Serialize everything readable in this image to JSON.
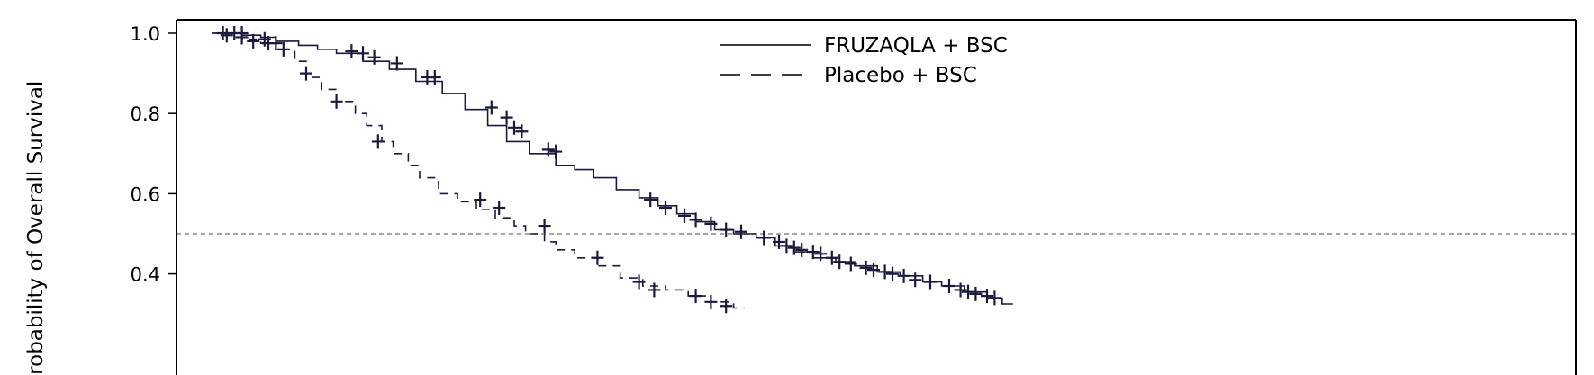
{
  "chart_data": {
    "type": "line",
    "subtype": "kaplan-meier",
    "ylabel": "Probability of Overall Survival",
    "xlabel": "",
    "xlim": [
      0,
      36
    ],
    "ylim": [
      0,
      1.0
    ],
    "yticks": [
      0.4,
      0.6,
      0.8,
      1.0
    ],
    "ytick_labels": [
      "0.4",
      "0.6",
      "0.8",
      "1.0"
    ],
    "reference_line": {
      "y": 0.5,
      "style": "dashed",
      "color": "#888888"
    },
    "grid": false,
    "legend_position": "top-center",
    "colors": {
      "series": "#1a1a3a",
      "axes": "#000000",
      "reference": "#888888"
    },
    "series": [
      {
        "name": "FRUZAQLA + BSC",
        "line_style": "solid",
        "x": [
          0,
          0.8,
          1.3,
          1.7,
          2.3,
          2.8,
          3.3,
          4.0,
          4.7,
          5.4,
          6.1,
          6.7,
          7.3,
          7.8,
          8.4,
          9.1,
          9.6,
          10.1,
          10.7,
          11.3,
          11.8,
          12.3,
          12.8,
          13.3,
          13.8,
          14.4,
          14.9,
          15.4,
          15.9,
          16.5,
          17.0,
          17.6,
          18.2,
          18.8,
          19.3,
          19.9,
          20.5,
          20.9
        ],
        "y": [
          1.0,
          0.995,
          0.99,
          0.98,
          0.97,
          0.96,
          0.95,
          0.93,
          0.91,
          0.88,
          0.85,
          0.81,
          0.77,
          0.73,
          0.7,
          0.67,
          0.66,
          0.64,
          0.61,
          0.59,
          0.57,
          0.55,
          0.53,
          0.51,
          0.5,
          0.49,
          0.47,
          0.455,
          0.44,
          0.43,
          0.42,
          0.405,
          0.395,
          0.38,
          0.37,
          0.355,
          0.34,
          0.325
        ],
        "censored_x": [
          0.3,
          0.6,
          0.8,
          1.4,
          1.7,
          3.7,
          4.0,
          4.3,
          4.9,
          5.7,
          5.9,
          7.4,
          7.8,
          8.0,
          8.2,
          8.9,
          9.1,
          11.6,
          12.0,
          12.5,
          12.8,
          13.2,
          13.6,
          14.0,
          14.6,
          15.0,
          15.2,
          15.4,
          15.6,
          15.9,
          16.1,
          16.4,
          16.6,
          16.9,
          17.3,
          17.5,
          17.8,
          18.0,
          18.3,
          18.6,
          19.0,
          19.5,
          19.8,
          20.0,
          20.2,
          20.5,
          20.7
        ],
        "censored_y": [
          1.0,
          1.0,
          1.0,
          0.985,
          0.975,
          0.955,
          0.95,
          0.94,
          0.925,
          0.89,
          0.89,
          0.815,
          0.79,
          0.765,
          0.755,
          0.71,
          0.705,
          0.585,
          0.565,
          0.545,
          0.535,
          0.525,
          0.51,
          0.505,
          0.49,
          0.48,
          0.47,
          0.465,
          0.46,
          0.455,
          0.45,
          0.44,
          0.43,
          0.425,
          0.415,
          0.41,
          0.405,
          0.4,
          0.395,
          0.385,
          0.38,
          0.37,
          0.36,
          0.355,
          0.35,
          0.345,
          0.34
        ]
      },
      {
        "name": "Placebo + BSC",
        "line_style": "dashed",
        "x": [
          0,
          0.8,
          1.3,
          1.7,
          2.2,
          2.5,
          2.9,
          3.3,
          3.8,
          4.1,
          4.5,
          4.8,
          5.2,
          5.5,
          6.0,
          6.5,
          7.0,
          7.5,
          8.0,
          8.3,
          8.8,
          9.1,
          9.6,
          10.2,
          10.8,
          11.4,
          12.0,
          12.6,
          13.2,
          13.8
        ],
        "y": [
          1.0,
          0.985,
          0.975,
          0.96,
          0.93,
          0.89,
          0.86,
          0.83,
          0.8,
          0.77,
          0.73,
          0.7,
          0.67,
          0.64,
          0.6,
          0.58,
          0.56,
          0.54,
          0.52,
          0.5,
          0.48,
          0.46,
          0.44,
          0.42,
          0.39,
          0.37,
          0.36,
          0.345,
          0.33,
          0.315
        ],
        "censored_x": [
          0.4,
          0.8,
          1.1,
          1.5,
          1.9,
          2.5,
          3.3,
          4.4,
          7.1,
          7.6,
          8.8,
          10.2,
          11.3,
          11.7,
          12.8,
          13.2,
          13.6
        ],
        "censored_y": [
          0.995,
          0.99,
          0.98,
          0.975,
          0.96,
          0.9,
          0.83,
          0.73,
          0.585,
          0.565,
          0.52,
          0.44,
          0.38,
          0.36,
          0.345,
          0.33,
          0.32
        ]
      }
    ]
  }
}
